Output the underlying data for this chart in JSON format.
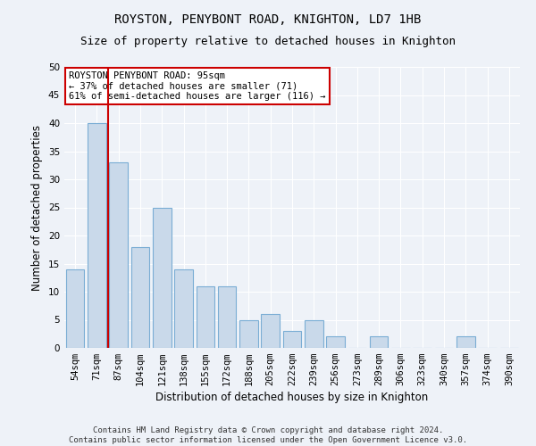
{
  "title": "ROYSTON, PENYBONT ROAD, KNIGHTON, LD7 1HB",
  "subtitle": "Size of property relative to detached houses in Knighton",
  "xlabel": "Distribution of detached houses by size in Knighton",
  "ylabel": "Number of detached properties",
  "categories": [
    "54sqm",
    "71sqm",
    "87sqm",
    "104sqm",
    "121sqm",
    "138sqm",
    "155sqm",
    "172sqm",
    "188sqm",
    "205sqm",
    "222sqm",
    "239sqm",
    "256sqm",
    "273sqm",
    "289sqm",
    "306sqm",
    "323sqm",
    "340sqm",
    "357sqm",
    "374sqm",
    "390sqm"
  ],
  "values": [
    14,
    40,
    33,
    18,
    25,
    14,
    11,
    11,
    5,
    6,
    3,
    5,
    2,
    0,
    2,
    0,
    0,
    0,
    2,
    0,
    0
  ],
  "bar_color": "#c9d9ea",
  "bar_edge_color": "#7aadd4",
  "red_line_x": 2,
  "ylim": [
    0,
    50
  ],
  "yticks": [
    0,
    5,
    10,
    15,
    20,
    25,
    30,
    35,
    40,
    45,
    50
  ],
  "annotation_title": "ROYSTON PENYBONT ROAD: 95sqm",
  "annotation_line1": "← 37% of detached houses are smaller (71)",
  "annotation_line2": "61% of semi-detached houses are larger (116) →",
  "annotation_box_color": "#ffffff",
  "annotation_box_edge_color": "#cc0000",
  "footer_line1": "Contains HM Land Registry data © Crown copyright and database right 2024.",
  "footer_line2": "Contains public sector information licensed under the Open Government Licence v3.0.",
  "background_color": "#eef2f8",
  "grid_color": "#ffffff",
  "title_fontsize": 10,
  "subtitle_fontsize": 9,
  "tick_fontsize": 7.5,
  "label_fontsize": 8.5,
  "footer_fontsize": 6.5
}
